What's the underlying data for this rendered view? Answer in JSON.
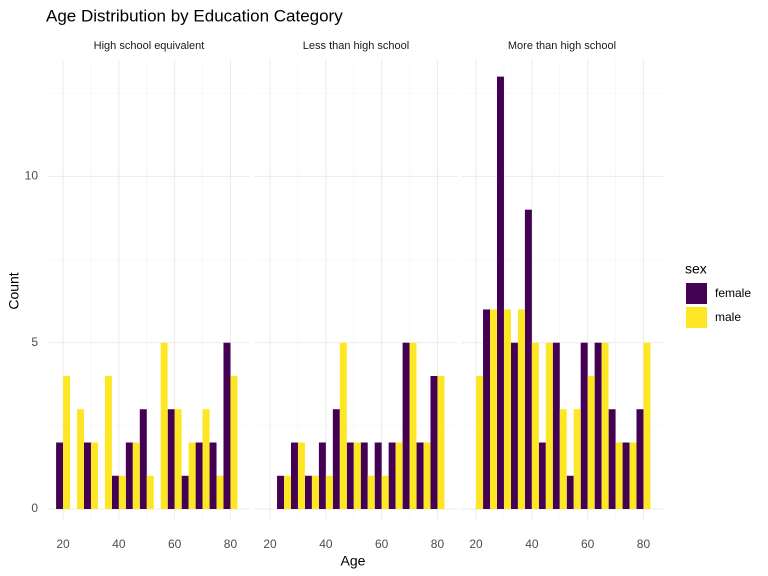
{
  "chart_data": {
    "type": "bar",
    "title": "Age Distribution by Education Category",
    "x_label": "Age",
    "y_label": "Count",
    "legend_title": "sex",
    "xlim": [
      14.6,
      87
    ],
    "xticks": [
      20,
      40,
      60,
      80
    ],
    "ylim": [
      -0.3,
      13.5
    ],
    "yticks": [
      0,
      5,
      10
    ],
    "grid": true,
    "panels": [
      {
        "title": "High school equivalent",
        "x": [
          20,
          25,
          30,
          35,
          40,
          45,
          50,
          55,
          60,
          65,
          70,
          75,
          80
        ],
        "series": [
          {
            "name": "female",
            "color": "#440154",
            "values": [
              2,
              0,
              2,
              0,
              1,
              2,
              3,
              0,
              3,
              1,
              2,
              2,
              5
            ]
          },
          {
            "name": "male",
            "color": "#FDE725",
            "values": [
              4,
              3,
              2,
              4,
              1,
              2,
              1,
              5,
              3,
              2,
              3,
              1,
              4
            ]
          }
        ]
      },
      {
        "title": "Less than high school",
        "x": [
          20,
          25,
          30,
          35,
          40,
          45,
          50,
          55,
          60,
          65,
          70,
          75,
          80
        ],
        "series": [
          {
            "name": "female",
            "color": "#440154",
            "values": [
              0,
              1,
              2,
              1,
              2,
              3,
              2,
              2,
              2,
              2,
              5,
              2,
              4
            ]
          },
          {
            "name": "male",
            "color": "#FDE725",
            "values": [
              0,
              1,
              2,
              1,
              1,
              5,
              2,
              1,
              1,
              2,
              5,
              2,
              4
            ]
          }
        ]
      },
      {
        "title": "More than high school",
        "x": [
          20,
          25,
          30,
          35,
          40,
          45,
          50,
          55,
          60,
          65,
          70,
          75,
          80
        ],
        "series": [
          {
            "name": "female",
            "color": "#440154",
            "values": [
              0,
              6,
              13,
              5,
              9,
              2,
              5,
              1,
              5,
              5,
              3,
              2,
              3
            ]
          },
          {
            "name": "male",
            "color": "#FDE725",
            "values": [
              4,
              6,
              6,
              6,
              5,
              5,
              3,
              3,
              4,
              5,
              2,
              2,
              5
            ]
          }
        ]
      }
    ]
  }
}
